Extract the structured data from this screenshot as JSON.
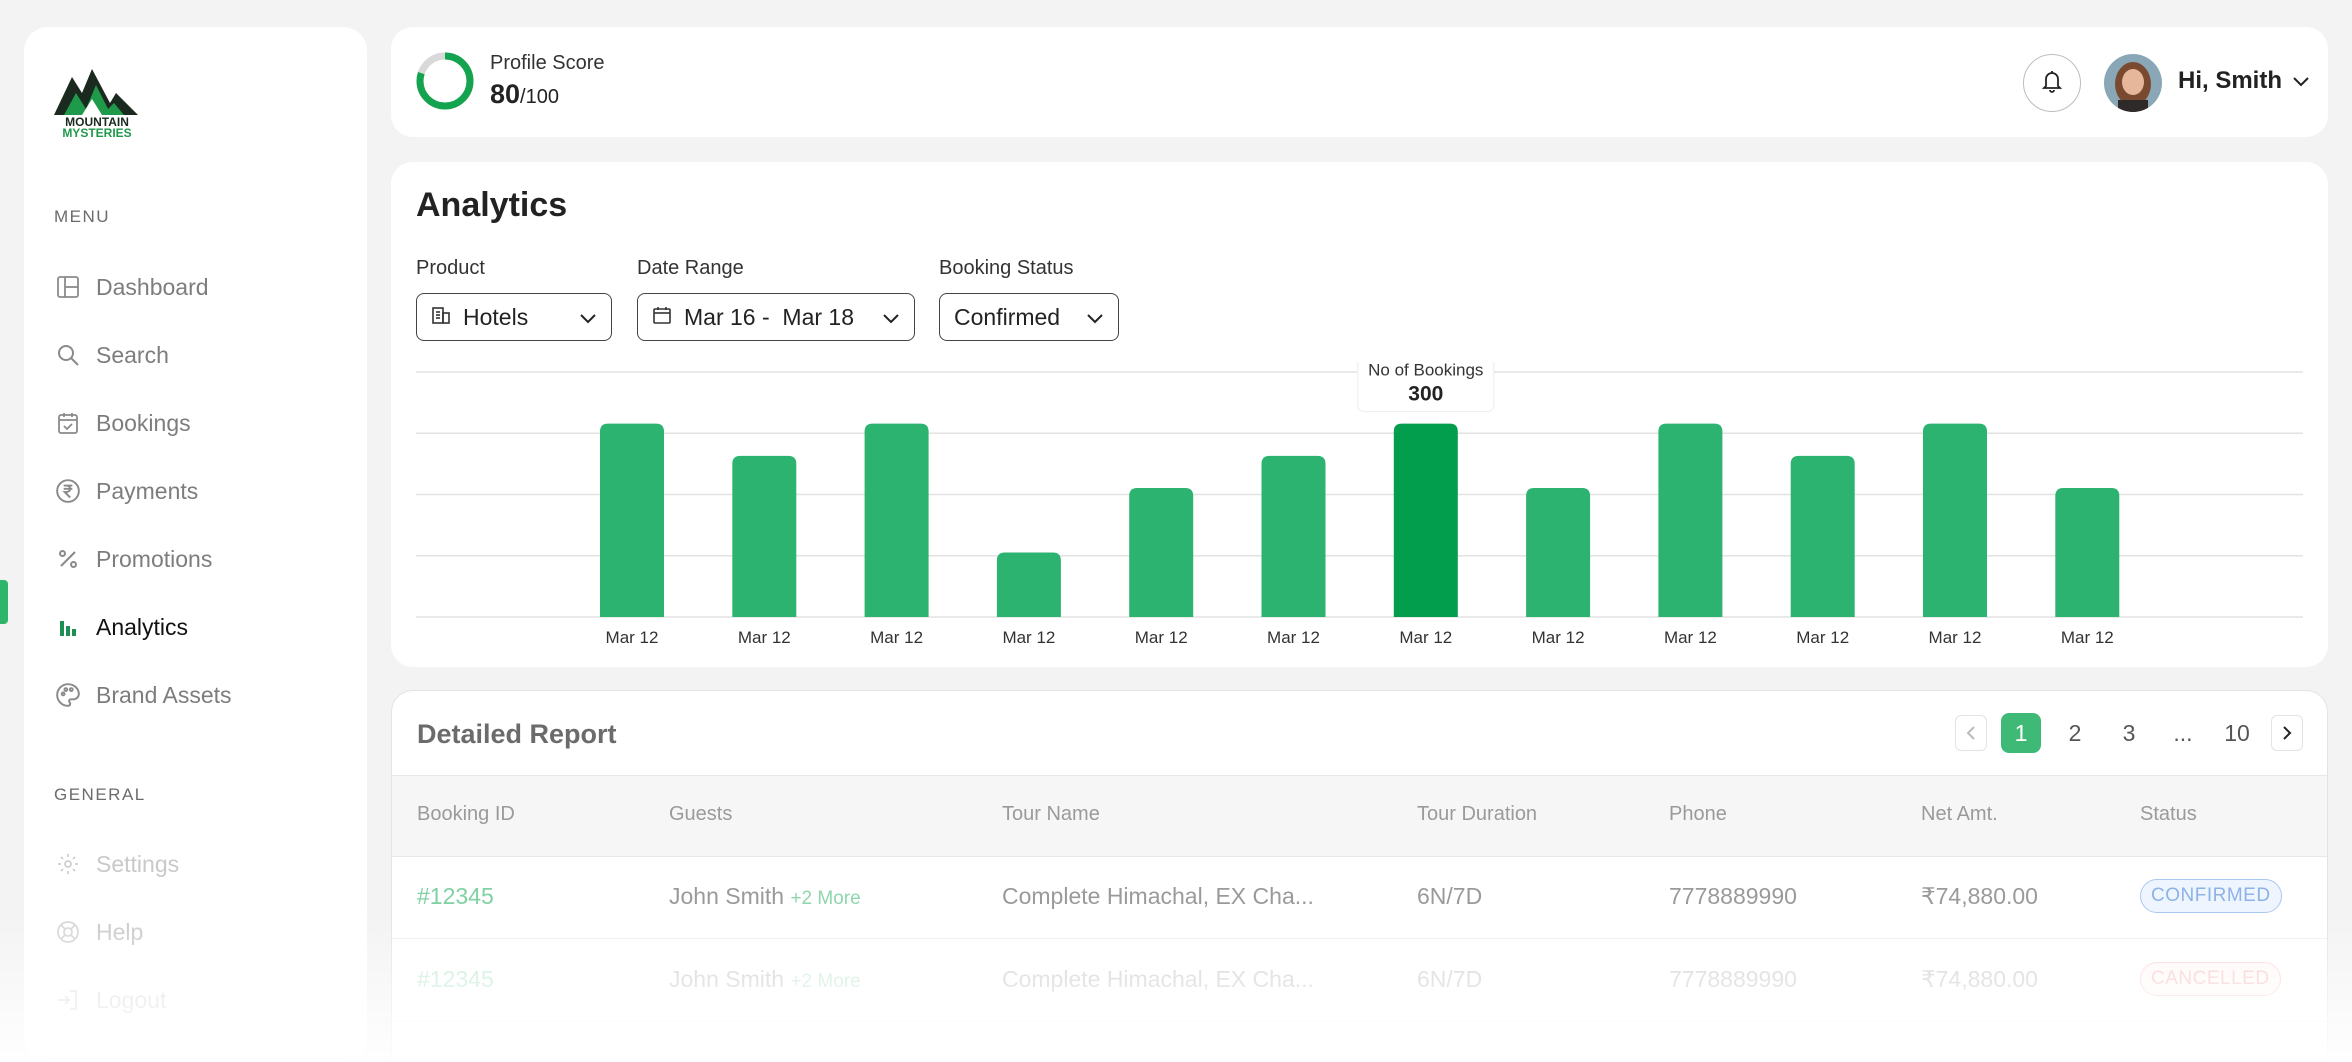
{
  "brand": {
    "line1": "MOUNTAIN",
    "line2": "MYSTERIES",
    "colors": {
      "dark": "#1b2a1f",
      "green": "#1f9a4b"
    }
  },
  "sidebar": {
    "menu_title": "MENU",
    "items": [
      {
        "label": "Dashboard",
        "icon": "layout-icon"
      },
      {
        "label": "Search",
        "icon": "search-icon"
      },
      {
        "label": "Bookings",
        "icon": "calendar-check-icon"
      },
      {
        "label": "Payments",
        "icon": "rupee-icon"
      },
      {
        "label": "Promotions",
        "icon": "percent-icon"
      },
      {
        "label": "Analytics",
        "icon": "bar-chart-icon",
        "active": true
      },
      {
        "label": "Brand Assets",
        "icon": "palette-icon"
      }
    ],
    "general_title": "GENERAL",
    "general_items": [
      {
        "label": "Settings",
        "icon": "gear-icon"
      },
      {
        "label": "Help",
        "icon": "help-icon"
      },
      {
        "label": "Logout",
        "icon": "logout-icon"
      }
    ]
  },
  "topbar": {
    "score_label": "Profile Score",
    "score_value": "80",
    "score_max": "/100",
    "score_fraction": 0.8,
    "greeting": "Hi, Smith"
  },
  "analytics": {
    "title": "Analytics",
    "filters": {
      "product_label": "Product",
      "product_value": "Hotels",
      "date_label": "Date Range",
      "date_value": "Mar 16 -  Mar 18",
      "status_label": "Booking Status",
      "status_value": "Confirmed"
    },
    "tooltip": {
      "label": "No of Bookings",
      "value": "300"
    }
  },
  "chart_data": {
    "type": "bar",
    "categories": [
      "Mar 12",
      "Mar 12",
      "Mar 12",
      "Mar 12",
      "Mar 12",
      "Mar 12",
      "Mar 12",
      "Mar 12",
      "Mar 12",
      "Mar 12",
      "Mar 12",
      "Mar 12"
    ],
    "values": [
      300,
      250,
      300,
      100,
      200,
      250,
      300,
      200,
      300,
      250,
      300,
      200
    ],
    "highlight_index": 6,
    "ylim": [
      0,
      380
    ],
    "grid": true,
    "colors": {
      "bar": "#2bb36f",
      "highlight": "#039d4e",
      "grid": "#e2e2e2"
    }
  },
  "report": {
    "title": "Detailed Report",
    "pagination": [
      "1",
      "2",
      "3",
      "...",
      "10"
    ],
    "columns": [
      "Booking ID",
      "Guests",
      "Tour Name",
      "Tour Duration",
      "Phone",
      "Net Amt.",
      "Status"
    ],
    "rows": [
      {
        "id": "#12345",
        "guest": "John Smith",
        "more": "+2 More",
        "tour": "Complete Himachal, EX Cha...",
        "duration": "6N/7D",
        "phone": "7778889990",
        "amount": "₹74,880.00",
        "status": "CONFIRMED"
      },
      {
        "id": "#12345",
        "guest": "John Smith",
        "more": "+2 More",
        "tour": "Complete Himachal, EX Cha...",
        "duration": "6N/7D",
        "phone": "7778889990",
        "amount": "₹74,880.00",
        "status": "CANCELLED"
      }
    ]
  }
}
